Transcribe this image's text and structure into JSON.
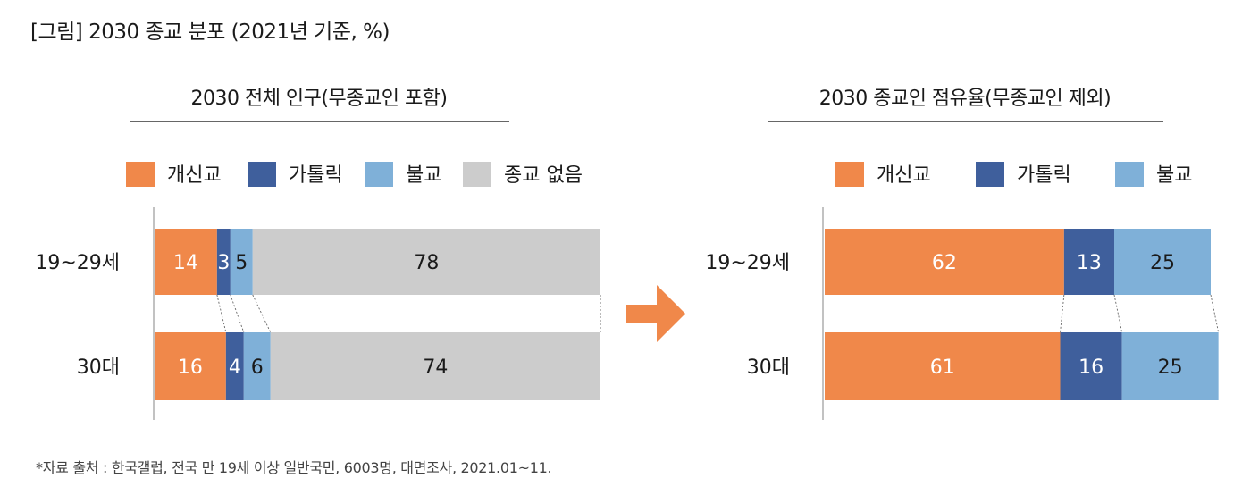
{
  "figure_title": "[그림] 2030 종교 분포 (2021년 기준, %)",
  "source_note": "*자료 출처 : 한국갤럽, 전국 만 19세 이상 일반국민, 6003명, 대면조사, 2021.01~11.",
  "colors": {
    "개신교": "#f0884a",
    "가톨릭": "#3f5f9c",
    "불교": "#7fb0d8",
    "종교 없음": "#cccccc",
    "arrow": "#f0884a"
  },
  "chart_data": [
    {
      "type": "bar",
      "orientation": "horizontal",
      "stacked": true,
      "title": "2030 전체 인구(무종교인 포함)",
      "categories": [
        "19~29세",
        "30대"
      ],
      "series": [
        {
          "name": "개신교",
          "values": [
            14,
            16
          ]
        },
        {
          "name": "가톨릭",
          "values": [
            3,
            4
          ]
        },
        {
          "name": "불교",
          "values": [
            5,
            6
          ]
        },
        {
          "name": "종교 없음",
          "values": [
            78,
            74
          ]
        }
      ],
      "xlim": [
        0,
        100
      ],
      "legend": "top",
      "grid": false
    },
    {
      "type": "bar",
      "orientation": "horizontal",
      "stacked": true,
      "title": "2030 종교인 점유율(무종교인 제외)",
      "categories": [
        "19~29세",
        "30대"
      ],
      "series": [
        {
          "name": "개신교",
          "values": [
            62,
            61
          ]
        },
        {
          "name": "가톨릭",
          "values": [
            13,
            16
          ]
        },
        {
          "name": "불교",
          "values": [
            25,
            25
          ]
        }
      ],
      "xlim": [
        0,
        100
      ],
      "legend": "top",
      "grid": false
    }
  ]
}
